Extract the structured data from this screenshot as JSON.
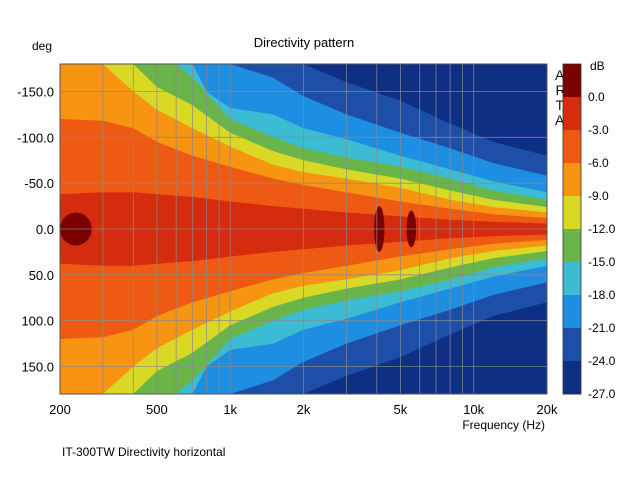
{
  "chart_data": {
    "type": "heatmap",
    "title": "Directivity pattern",
    "ylabel": "deg",
    "xlabel": "Frequency (Hz)",
    "caption": "IT-300TW Directivity horizontal",
    "watermark": "ARTA",
    "x_scale": "log",
    "xlim": [
      200,
      20000
    ],
    "ylim": [
      -180,
      180
    ],
    "grid": true,
    "x_ticks": [
      {
        "value": 200,
        "label": "200"
      },
      {
        "value": 500,
        "label": "500"
      },
      {
        "value": 1000,
        "label": "1k"
      },
      {
        "value": 2000,
        "label": "2k"
      },
      {
        "value": 5000,
        "label": "5k"
      },
      {
        "value": 10000,
        "label": "10k"
      },
      {
        "value": 20000,
        "label": "20k"
      }
    ],
    "x_minor_grid": [
      300,
      400,
      600,
      700,
      800,
      900,
      3000,
      4000,
      6000,
      7000,
      8000,
      9000
    ],
    "y_ticks": [
      {
        "value": -150,
        "label": "-150.0"
      },
      {
        "value": -100,
        "label": "-100.0"
      },
      {
        "value": -50,
        "label": "-50.0"
      },
      {
        "value": 0,
        "label": "0.0"
      },
      {
        "value": 50,
        "label": "50.0"
      },
      {
        "value": 100,
        "label": "100.0"
      },
      {
        "value": 150,
        "label": "150.0"
      }
    ],
    "colorbar": {
      "unit": "dB",
      "range": [
        -27,
        3
      ],
      "step": 3,
      "labels": [
        "0.0",
        "-3.0",
        "-6.0",
        "-9.0",
        "-12.0",
        "-15.0",
        "-18.0",
        "-21.0",
        "-24.0",
        "-27.0"
      ],
      "bands": [
        {
          "min": 0,
          "max": 3,
          "color": "#7a0000"
        },
        {
          "min": -3,
          "max": 0,
          "color": "#d52b0e"
        },
        {
          "min": -6,
          "max": -3,
          "color": "#ee5a13"
        },
        {
          "min": -9,
          "max": -6,
          "color": "#f79412"
        },
        {
          "min": -12,
          "max": -9,
          "color": "#d9d925"
        },
        {
          "min": -15,
          "max": -12,
          "color": "#6ab54a"
        },
        {
          "min": -18,
          "max": -15,
          "color": "#3cbcd3"
        },
        {
          "min": -21,
          "max": -18,
          "color": "#1d8ee2"
        },
        {
          "min": -24,
          "max": -21,
          "color": "#1e4fa8"
        },
        {
          "min": -27,
          "max": -24,
          "color": "#0f2f85"
        }
      ]
    },
    "contour_boundaries": [
      {
        "level": -3,
        "points": [
          [
            200,
            38
          ],
          [
            300,
            40
          ],
          [
            400,
            40
          ],
          [
            500,
            38
          ],
          [
            700,
            35
          ],
          [
            1000,
            30
          ],
          [
            1500,
            25
          ],
          [
            2000,
            22
          ],
          [
            3000,
            18
          ],
          [
            5000,
            14
          ],
          [
            8000,
            10
          ],
          [
            12000,
            8
          ],
          [
            20000,
            6
          ]
        ]
      },
      {
        "level": -6,
        "points": [
          [
            200,
            120
          ],
          [
            300,
            118
          ],
          [
            400,
            110
          ],
          [
            500,
            95
          ],
          [
            700,
            80
          ],
          [
            1000,
            68
          ],
          [
            1500,
            55
          ],
          [
            2000,
            48
          ],
          [
            3000,
            40
          ],
          [
            5000,
            30
          ],
          [
            8000,
            22
          ],
          [
            12000,
            16
          ],
          [
            20000,
            12
          ]
        ]
      },
      {
        "level": -9,
        "points": [
          [
            200,
            180
          ],
          [
            300,
            180
          ],
          [
            400,
            150
          ],
          [
            500,
            130
          ],
          [
            700,
            110
          ],
          [
            1000,
            90
          ],
          [
            1500,
            70
          ],
          [
            2000,
            62
          ],
          [
            3000,
            55
          ],
          [
            5000,
            45
          ],
          [
            8000,
            32
          ],
          [
            12000,
            24
          ],
          [
            20000,
            18
          ]
        ]
      },
      {
        "level": -12,
        "points": [
          [
            400,
            180
          ],
          [
            500,
            155
          ],
          [
            700,
            135
          ],
          [
            1000,
            105
          ],
          [
            1500,
            85
          ],
          [
            2000,
            75
          ],
          [
            3000,
            65
          ],
          [
            5000,
            55
          ],
          [
            8000,
            42
          ],
          [
            12000,
            32
          ],
          [
            20000,
            24
          ]
        ]
      },
      {
        "level": -15,
        "points": [
          [
            600,
            180
          ],
          [
            700,
            165
          ],
          [
            1000,
            120
          ],
          [
            1500,
            100
          ],
          [
            2000,
            88
          ],
          [
            3000,
            78
          ],
          [
            5000,
            68
          ],
          [
            8000,
            55
          ],
          [
            12000,
            42
          ],
          [
            20000,
            32
          ]
        ]
      },
      {
        "level": -18,
        "points": [
          [
            700,
            180
          ],
          [
            800,
            150
          ],
          [
            1000,
            132
          ],
          [
            1500,
            125
          ],
          [
            2000,
            110
          ],
          [
            3000,
            98
          ],
          [
            5000,
            80
          ],
          [
            8000,
            65
          ],
          [
            12000,
            52
          ],
          [
            20000,
            40
          ]
        ]
      },
      {
        "level": -21,
        "points": [
          [
            1000,
            180
          ],
          [
            1500,
            165
          ],
          [
            2000,
            145
          ],
          [
            3000,
            125
          ],
          [
            5000,
            105
          ],
          [
            8000,
            88
          ],
          [
            12000,
            72
          ],
          [
            20000,
            58
          ]
        ]
      },
      {
        "level": -24,
        "points": [
          [
            2000,
            180
          ],
          [
            3000,
            160
          ],
          [
            5000,
            140
          ],
          [
            8000,
            115
          ],
          [
            12000,
            95
          ],
          [
            20000,
            80
          ]
        ]
      }
    ],
    "peak_regions": [
      {
        "level": 0,
        "x": [
          200,
          270
        ],
        "y": [
          -18,
          18
        ]
      },
      {
        "level": 0,
        "x": [
          3900,
          4300
        ],
        "y": [
          -25,
          25
        ]
      },
      {
        "level": 0,
        "x": [
          5300,
          5800
        ],
        "y": [
          -20,
          20
        ]
      }
    ]
  }
}
